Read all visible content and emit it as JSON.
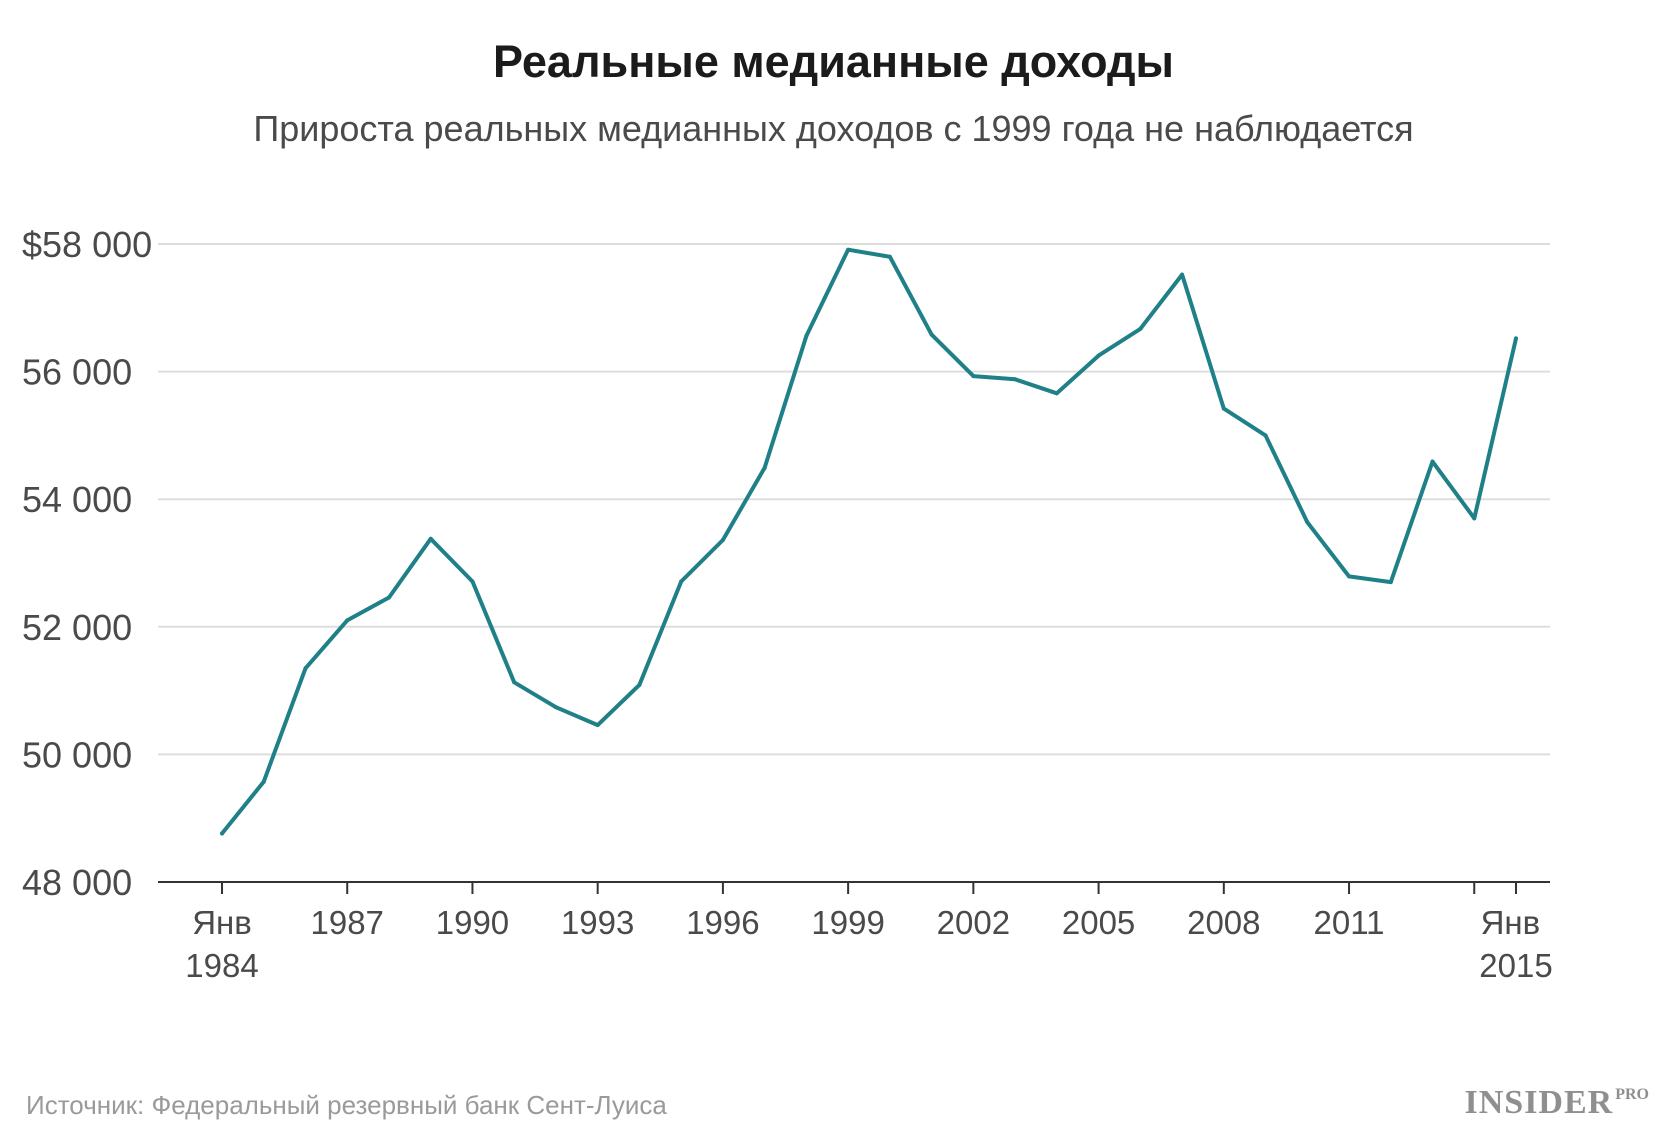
{
  "title": "Реальные медианные доходы",
  "subtitle": "Прироста реальных медианных доходов с 1999 года не наблюдается",
  "source": "Источник: Федеральный резервный банк Сент-Луиса",
  "logo": {
    "main": "INSIDER",
    "suffix": "PRO"
  },
  "colors": {
    "line": "#1f8088",
    "grid": "#dddddd",
    "axis": "#333333"
  },
  "chart_data": {
    "type": "line",
    "grid": true,
    "ylim": [
      48000,
      58000
    ],
    "xlim": [
      1984,
      2015
    ],
    "y_ticks": [
      {
        "value": 58000,
        "label": "$58 000"
      },
      {
        "value": 56000,
        "label": "56 000"
      },
      {
        "value": 54000,
        "label": "54 000"
      },
      {
        "value": 52000,
        "label": "52 000"
      },
      {
        "value": 50000,
        "label": "50 000"
      },
      {
        "value": 48000,
        "label": "48 000"
      }
    ],
    "x_ticks": [
      {
        "value": 1984,
        "line1": "Янв",
        "line2": "1984"
      },
      {
        "value": 1987,
        "line1": "1987",
        "line2": ""
      },
      {
        "value": 1990,
        "line1": "1990",
        "line2": ""
      },
      {
        "value": 1993,
        "line1": "1993",
        "line2": ""
      },
      {
        "value": 1996,
        "line1": "1996",
        "line2": ""
      },
      {
        "value": 1999,
        "line1": "1999",
        "line2": ""
      },
      {
        "value": 2002,
        "line1": "2002",
        "line2": ""
      },
      {
        "value": 2005,
        "line1": "2005",
        "line2": ""
      },
      {
        "value": 2008,
        "line1": "2008",
        "line2": ""
      },
      {
        "value": 2011,
        "line1": "2011",
        "line2": ""
      },
      {
        "value": 2014,
        "line1": "",
        "line2": ""
      },
      {
        "value": 2015,
        "line1": "Янв",
        "line2": "2015"
      }
    ],
    "series": [
      {
        "x": [
          1984,
          1985,
          1986,
          1987,
          1988,
          1989,
          1990,
          1991,
          1992,
          1993,
          1994,
          1995,
          1996,
          1997,
          1998,
          1999,
          2000,
          2001,
          2002,
          2003,
          2004,
          2005,
          2006,
          2007,
          2008,
          2009,
          2010,
          2011,
          2012,
          2013,
          2014,
          2015
        ],
        "values": [
          48760,
          49570,
          51350,
          52100,
          52460,
          53380,
          52710,
          51130,
          50740,
          50460,
          51090,
          52710,
          53360,
          54490,
          56560,
          57910,
          57800,
          56580,
          55930,
          55880,
          55660,
          56250,
          56670,
          57520,
          55420,
          55000,
          53640,
          52790,
          52700,
          54590,
          53700,
          56520
        ]
      }
    ]
  }
}
